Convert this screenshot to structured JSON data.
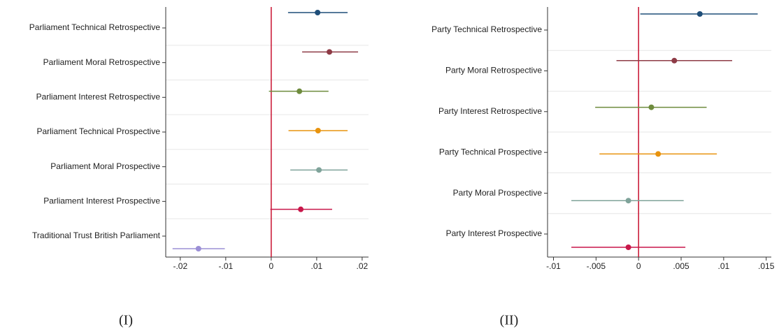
{
  "chart_data": [
    {
      "type": "coefplot",
      "categories": [
        "Parliament Technical Retrospective",
        "Parliament Moral Retrospective",
        "Parliament Interest Retrospective",
        "Parliament Technical Prospective",
        "Parliament Moral Prospective",
        "Parliament Interest Prospective",
        "Traditional Trust British Parliament"
      ],
      "values": [
        0.0102,
        0.0128,
        0.0062,
        0.0103,
        0.0105,
        0.0065,
        -0.016
      ],
      "lower": [
        0.0037,
        0.0068,
        -0.0005,
        0.0038,
        0.0042,
        -0.0002,
        -0.0217
      ],
      "upper": [
        0.0168,
        0.0191,
        0.0126,
        0.0168,
        0.0168,
        0.0134,
        -0.0102
      ],
      "colors": [
        "#1f4e79",
        "#8e3b46",
        "#6e8b3d",
        "#e8930e",
        "#7fa39a",
        "#c8174a",
        "#9b8fd6"
      ],
      "xlim": [
        -0.0232,
        0.0214
      ],
      "xticks": [
        {
          "value": -0.02,
          "label": "-.02"
        },
        {
          "value": -0.01,
          "label": "-.01"
        },
        0,
        {
          "value": 0.01,
          "label": ".01"
        },
        {
          "value": 0.02,
          "label": ".02"
        }
      ],
      "refline": 0,
      "refline_color": "#c8102e",
      "caption": "(I)"
    },
    {
      "type": "coefplot",
      "categories": [
        "Party Technical Retrospective",
        "Party Moral Retrospective",
        "Party Interest Retrospective",
        "Party Technical Prospective",
        "Party Moral Prospective",
        "Party Interest Prospective"
      ],
      "values": [
        0.0072,
        0.0042,
        0.0015,
        0.0023,
        -0.0012,
        -0.0012
      ],
      "lower": [
        0.0002,
        -0.0026,
        -0.0051,
        -0.0046,
        -0.0079,
        -0.0079
      ],
      "upper": [
        0.014,
        0.011,
        0.008,
        0.0092,
        0.0053,
        0.0055
      ],
      "colors": [
        "#1f4e79",
        "#8e3b46",
        "#6e8b3d",
        "#e8930e",
        "#7fa39a",
        "#c8174a"
      ],
      "xlim": [
        -0.0107,
        0.0156
      ],
      "xticks": [
        {
          "value": -0.01,
          "label": "-.01"
        },
        {
          "value": -0.005,
          "label": "-.005"
        },
        0,
        {
          "value": 0.005,
          "label": ".005"
        },
        {
          "value": 0.01,
          "label": ".01"
        },
        {
          "value": 0.015,
          "label": ".015"
        }
      ],
      "refline": 0,
      "refline_color": "#c8102e",
      "caption": "(II)"
    }
  ]
}
